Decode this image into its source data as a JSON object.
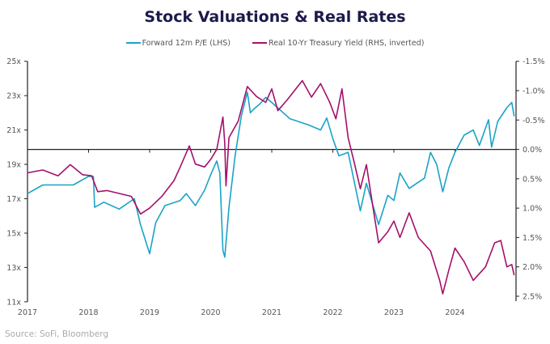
{
  "chart_data": {
    "type": "line",
    "title": "Stock Valuations & Real Rates",
    "source": "Source: SoFi, Bloomberg",
    "x_ticks": [
      "2017",
      "2018",
      "2019",
      "2020",
      "2021",
      "2022",
      "2023",
      "2024"
    ],
    "xlim": [
      2017,
      2025
    ],
    "left_axis": {
      "ticks": [
        "25x",
        "23x",
        "21x",
        "19x",
        "17x",
        "15x",
        "13x",
        "11x"
      ],
      "ylim": [
        11,
        25
      ]
    },
    "right_axis": {
      "ticks": [
        "-1.5%",
        "-1.0%",
        "-0.5%",
        "0.0%",
        "0.5%",
        "1.0%",
        "1.5%",
        "2.0%",
        "2.5%"
      ],
      "ylim": [
        -1.5,
        2.5
      ],
      "inverted": true
    },
    "grid": false,
    "legend_position": "top-center",
    "series": [
      {
        "name": "Forward 12m P/E (LHS)",
        "axis": "left",
        "color": "#1ba3c6",
        "x": [
          2017.0,
          2017.25,
          2017.5,
          2017.75,
          2018.0,
          2018.08,
          2018.1,
          2018.25,
          2018.5,
          2018.75,
          2018.85,
          2019.0,
          2019.1,
          2019.25,
          2019.5,
          2019.6,
          2019.75,
          2019.9,
          2020.0,
          2020.1,
          2020.15,
          2020.2,
          2020.23,
          2020.3,
          2020.4,
          2020.5,
          2020.6,
          2020.65,
          2020.7,
          2020.8,
          2020.9,
          2021.0,
          2021.3,
          2021.6,
          2021.8,
          2021.9,
          2022.0,
          2022.1,
          2022.25,
          2022.45,
          2022.55,
          2022.75,
          2022.9,
          2023.0,
          2023.1,
          2023.25,
          2023.5,
          2023.6,
          2023.7,
          2023.8,
          2023.9,
          2024.0,
          2024.15,
          2024.3,
          2024.4,
          2024.55,
          2024.6,
          2024.7,
          2024.85,
          2024.93,
          2024.97
        ],
        "y": [
          17.3,
          17.8,
          17.8,
          17.8,
          18.3,
          18.3,
          16.5,
          16.8,
          16.4,
          17.0,
          15.5,
          13.8,
          15.6,
          16.6,
          16.9,
          17.3,
          16.6,
          17.5,
          18.4,
          19.2,
          18.5,
          14.0,
          13.6,
          16.5,
          19.5,
          21.8,
          23.2,
          22.0,
          22.2,
          22.5,
          22.9,
          22.6,
          21.65,
          21.3,
          21.0,
          21.7,
          20.5,
          19.5,
          19.7,
          16.3,
          17.9,
          15.5,
          17.2,
          16.9,
          18.5,
          17.6,
          18.2,
          19.7,
          19.0,
          17.4,
          18.8,
          19.7,
          20.7,
          21.0,
          20.1,
          21.6,
          20.0,
          21.5,
          22.3,
          22.6,
          21.8
        ]
      },
      {
        "name": "Real 10-Yr Treasury Yield (RHS, inverted)",
        "axis": "right",
        "color": "#a4106b",
        "x": [
          2017.0,
          2017.1,
          2017.25,
          2017.5,
          2017.7,
          2017.9,
          2018.05,
          2018.15,
          2018.3,
          2018.5,
          2018.7,
          2018.85,
          2019.0,
          2019.2,
          2019.4,
          2019.5,
          2019.65,
          2019.75,
          2019.9,
          2020.0,
          2020.1,
          2020.2,
          2020.23,
          2020.25,
          2020.3,
          2020.45,
          2020.6,
          2020.75,
          2020.9,
          2021.0,
          2021.1,
          2021.25,
          2021.5,
          2021.65,
          2021.8,
          2021.95,
          2022.05,
          2022.15,
          2022.25,
          2022.35,
          2022.45,
          2022.55,
          2022.65,
          2022.75,
          2022.9,
          2023.0,
          2023.1,
          2023.25,
          2023.4,
          2023.6,
          2023.75,
          2023.8,
          2023.9,
          2024.0,
          2024.15,
          2024.3,
          2024.5,
          2024.65,
          2024.75,
          2024.85,
          2024.93,
          2024.97
        ],
        "y": [
          0.4,
          0.38,
          0.35,
          0.45,
          0.26,
          0.43,
          0.45,
          0.72,
          0.7,
          0.75,
          0.8,
          1.1,
          1.0,
          0.8,
          0.53,
          0.3,
          -0.06,
          0.25,
          0.3,
          0.17,
          0.0,
          -0.55,
          -0.1,
          0.62,
          -0.2,
          -0.48,
          -1.07,
          -0.9,
          -0.8,
          -1.03,
          -0.66,
          -0.84,
          -1.17,
          -0.89,
          -1.12,
          -0.8,
          -0.52,
          -1.03,
          -0.2,
          0.22,
          0.67,
          0.26,
          0.94,
          1.59,
          1.4,
          1.22,
          1.5,
          1.08,
          1.5,
          1.73,
          2.23,
          2.46,
          2.05,
          1.68,
          1.91,
          2.23,
          2.0,
          1.59,
          1.55,
          2.0,
          1.96,
          2.14
        ]
      }
    ]
  }
}
